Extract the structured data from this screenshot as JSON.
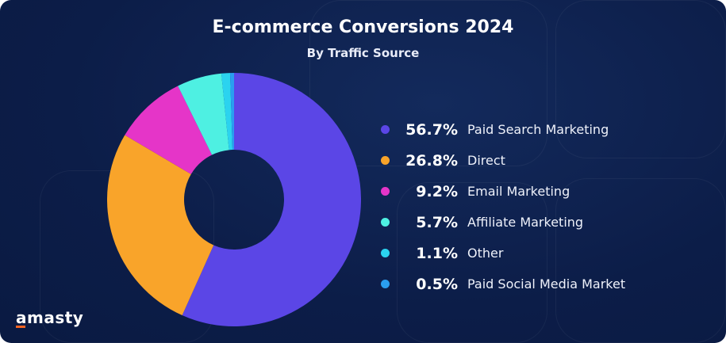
{
  "chart_data": {
    "type": "pie",
    "donut": true,
    "title": "E-commerce Conversions 2024",
    "subtitle": "By Traffic Source",
    "legend_position": "right",
    "slices": [
      {
        "label": "Paid Search Marketing",
        "value": 56.7,
        "display": "56.7%",
        "color": "#5b46e6"
      },
      {
        "label": "Direct",
        "value": 26.8,
        "display": "26.8%",
        "color": "#f9a42a"
      },
      {
        "label": "Email Marketing",
        "value": 9.2,
        "display": "9.2%",
        "color": "#e535c8"
      },
      {
        "label": "Affiliate Marketing",
        "value": 5.7,
        "display": "5.7%",
        "color": "#4ef0e2"
      },
      {
        "label": "Other",
        "value": 1.1,
        "display": "1.1%",
        "color": "#2bd3ef"
      },
      {
        "label": "Paid Social Media Market",
        "value": 0.5,
        "display": "0.5%",
        "color": "#2a9ef0"
      }
    ]
  },
  "brand": {
    "logo_text": "amasty",
    "accent": "#f26322"
  }
}
